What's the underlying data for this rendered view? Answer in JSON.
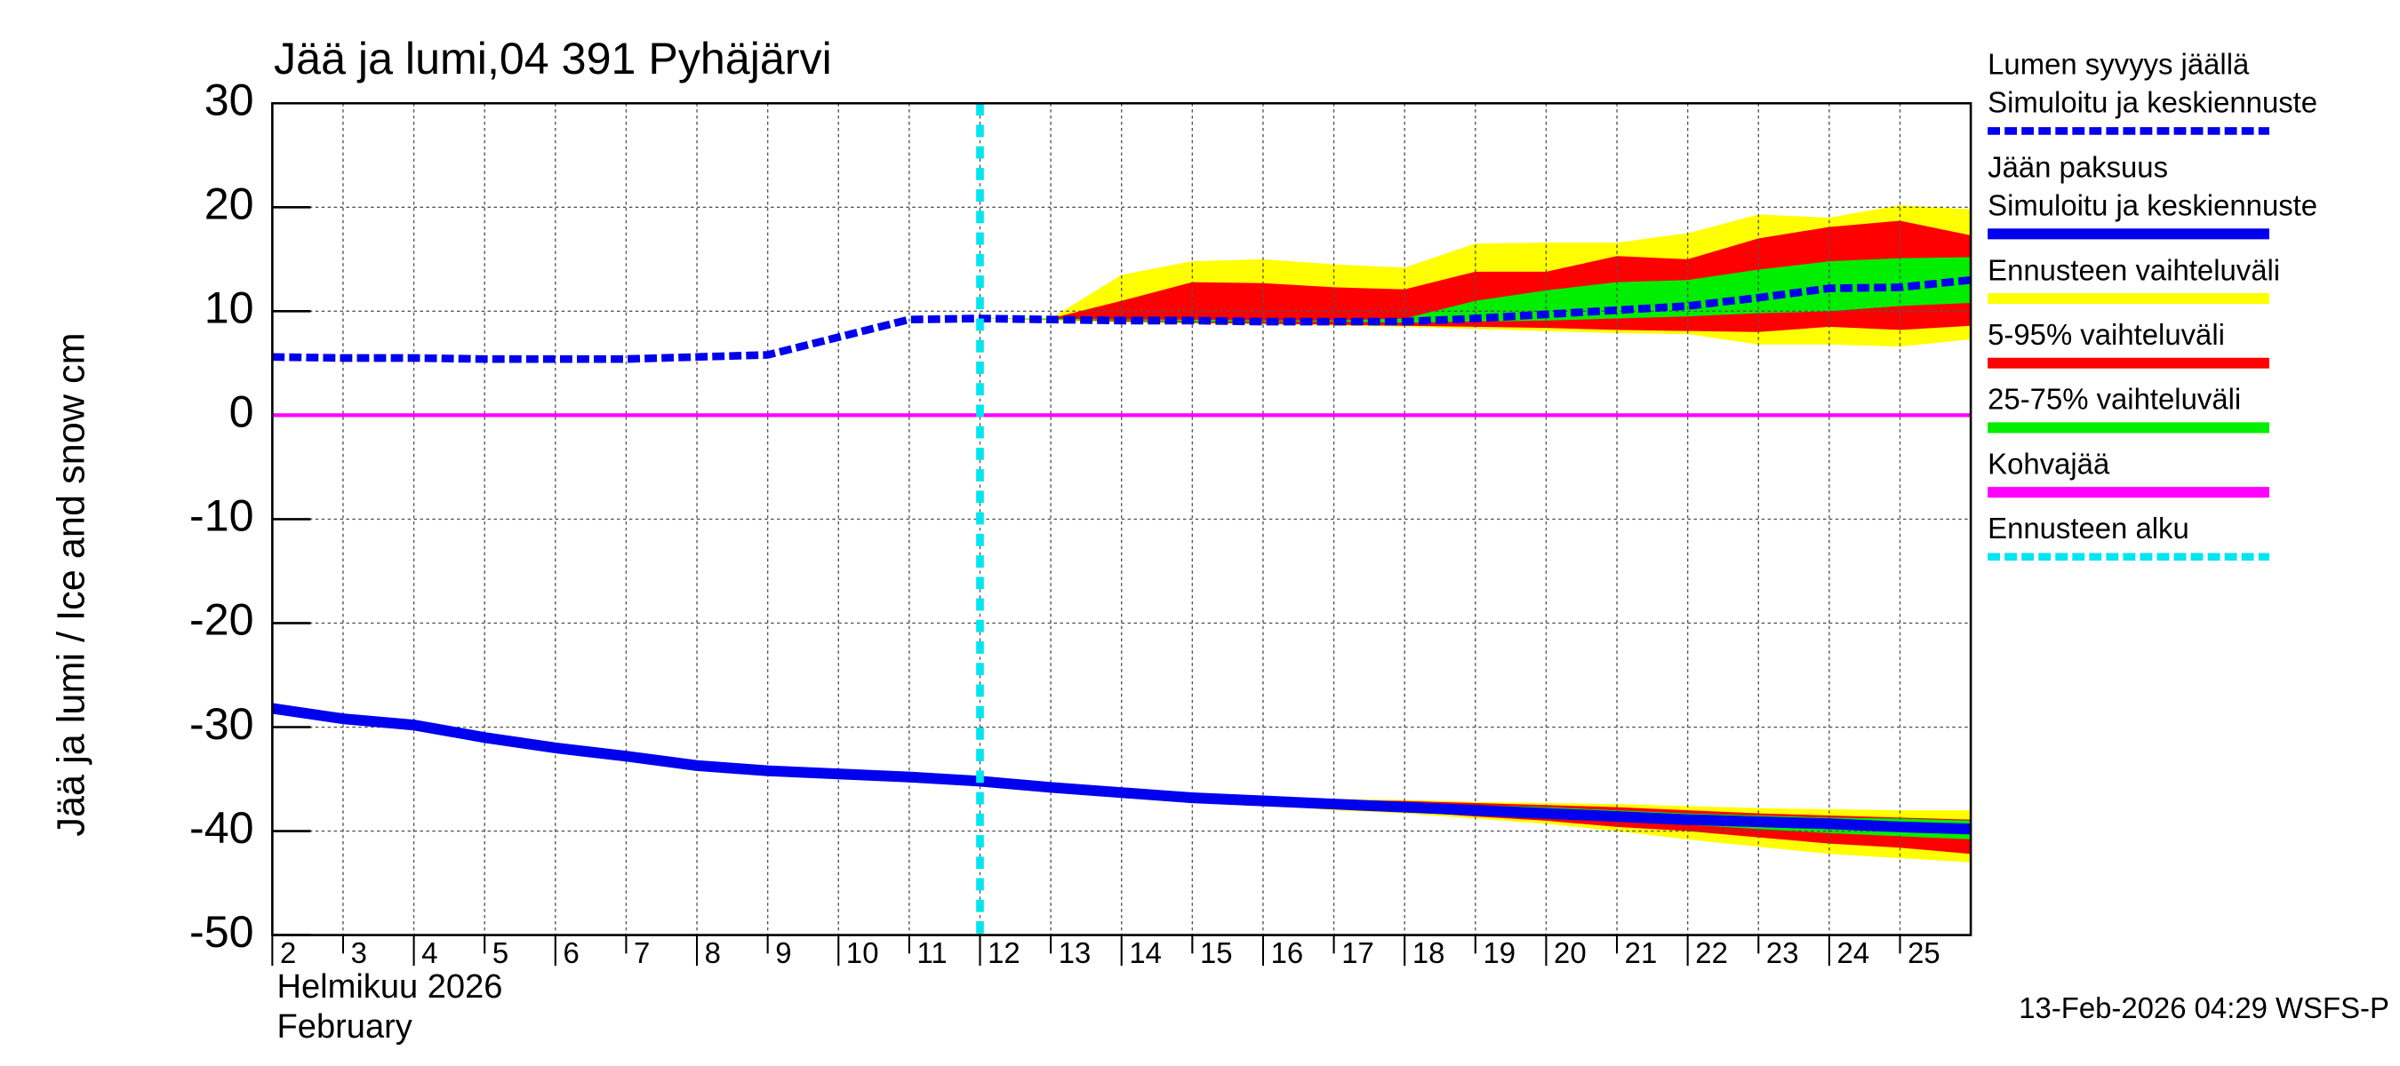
{
  "chart_data": {
    "type": "line",
    "title": "Jää ja lumi,04 391 Pyhäjärvi",
    "y_label": "Jää ja lumi / Ice and snow    cm",
    "x_label_fi": "Helmikuu  2026",
    "x_label_en": "February",
    "footer": "13-Feb-2026 04:29 WSFS-P",
    "xlim": [
      2,
      26
    ],
    "ylim": [
      -50,
      30
    ],
    "xticks": [
      2,
      3,
      4,
      5,
      6,
      7,
      8,
      9,
      10,
      11,
      12,
      13,
      14,
      15,
      16,
      17,
      18,
      19,
      20,
      21,
      22,
      23,
      24,
      25
    ],
    "yticks": [
      -50,
      -40,
      -30,
      -20,
      -10,
      0,
      10,
      20,
      30
    ],
    "grid": true,
    "forecast_start": 12,
    "bands": [
      {
        "color": "#ffff00",
        "x": [
          12,
          13,
          14,
          15,
          16,
          17,
          18,
          19,
          20,
          21,
          22,
          23,
          24,
          25,
          26
        ],
        "low": [
          9.3,
          9.1,
          8.9,
          8.8,
          8.7,
          8.6,
          8.5,
          8.3,
          8.1,
          7.9,
          7.8,
          6.8,
          6.8,
          6.6,
          7.3
        ],
        "high": [
          9.3,
          9.3,
          13.5,
          14.8,
          15.0,
          14.5,
          14.2,
          16.5,
          16.6,
          16.6,
          17.5,
          19.3,
          19.0,
          20.2,
          19.8
        ]
      },
      {
        "color": "#ff0000",
        "x": [
          12,
          13,
          14,
          15,
          16,
          17,
          18,
          19,
          20,
          21,
          22,
          23,
          24,
          25,
          26
        ],
        "low": [
          9.3,
          9.2,
          9.0,
          8.9,
          8.8,
          8.7,
          8.6,
          8.5,
          8.4,
          8.2,
          8.1,
          8.0,
          8.5,
          8.2,
          8.6
        ],
        "high": [
          9.3,
          9.3,
          11.0,
          12.8,
          12.7,
          12.3,
          12.1,
          13.8,
          13.8,
          15.3,
          15.0,
          17.0,
          18.1,
          18.7,
          17.3
        ]
      },
      {
        "color": "#00ee00",
        "x": [
          12,
          13,
          14,
          15,
          16,
          17,
          18,
          19,
          20,
          21,
          22,
          23,
          24,
          25,
          26
        ],
        "low": [
          9.3,
          9.2,
          9.1,
          9.0,
          9.0,
          9.0,
          8.9,
          9.0,
          9.1,
          9.3,
          9.5,
          9.8,
          10.0,
          10.5,
          10.8
        ],
        "high": [
          9.3,
          9.3,
          9.2,
          9.2,
          9.1,
          9.1,
          9.3,
          11.0,
          12.0,
          12.8,
          13.0,
          14.0,
          14.8,
          15.1,
          15.2
        ]
      },
      {
        "color": "#ffff00",
        "x": [
          12,
          13,
          14,
          15,
          16,
          17,
          18,
          19,
          20,
          21,
          22,
          23,
          24,
          25,
          26
        ],
        "low": [
          -35.2,
          -35.8,
          -36.3,
          -36.9,
          -37.5,
          -38.0,
          -38.3,
          -38.8,
          -39.3,
          -40.0,
          -40.8,
          -41.5,
          -42.2,
          -42.6,
          -43.0
        ],
        "high": [
          -35.2,
          -35.8,
          -36.2,
          -36.5,
          -36.7,
          -36.9,
          -37.0,
          -37.2,
          -37.3,
          -37.4,
          -37.6,
          -37.8,
          -37.9,
          -38.0,
          -38.0
        ]
      },
      {
        "color": "#ff0000",
        "x": [
          12,
          13,
          14,
          15,
          16,
          17,
          18,
          19,
          20,
          21,
          22,
          23,
          24,
          25,
          26
        ],
        "low": [
          -35.2,
          -35.8,
          -36.3,
          -36.9,
          -37.4,
          -37.8,
          -38.1,
          -38.6,
          -39.0,
          -39.6,
          -40.0,
          -40.6,
          -41.2,
          -41.6,
          -42.2
        ],
        "high": [
          -35.2,
          -35.8,
          -36.2,
          -36.6,
          -36.8,
          -37.0,
          -37.1,
          -37.3,
          -37.5,
          -37.7,
          -38.0,
          -38.3,
          -38.5,
          -38.7,
          -38.9
        ]
      },
      {
        "color": "#00ee00",
        "x": [
          12,
          13,
          14,
          15,
          16,
          17,
          18,
          19,
          20,
          21,
          22,
          23,
          24,
          25,
          26
        ],
        "low": [
          -35.2,
          -35.8,
          -36.3,
          -36.8,
          -37.2,
          -37.5,
          -37.8,
          -38.2,
          -38.6,
          -39.0,
          -39.4,
          -39.8,
          -40.2,
          -40.5,
          -40.8
        ],
        "high": [
          -35.2,
          -35.8,
          -36.3,
          -36.7,
          -36.9,
          -37.1,
          -37.3,
          -37.5,
          -37.7,
          -38.0,
          -38.3,
          -38.5,
          -38.7,
          -38.8,
          -39.0
        ]
      }
    ],
    "series": [
      {
        "color": "#ff00ff",
        "dashed": false,
        "x": [
          2,
          26
        ],
        "values": [
          0,
          0
        ]
      },
      {
        "color": "#0000ee",
        "dashed": false,
        "x": [
          2,
          3,
          4,
          5,
          6,
          7,
          8,
          9,
          10,
          11,
          12,
          13,
          14,
          15,
          16,
          17,
          18,
          19,
          20,
          21,
          22,
          23,
          24,
          25,
          26
        ],
        "values": [
          -28.2,
          -29.2,
          -29.8,
          -31.0,
          -32.0,
          -32.8,
          -33.7,
          -34.2,
          -34.5,
          -34.8,
          -35.2,
          -35.8,
          -36.3,
          -36.8,
          -37.1,
          -37.4,
          -37.7,
          -38.0,
          -38.3,
          -38.6,
          -38.9,
          -39.1,
          -39.3,
          -39.6,
          -39.8
        ]
      },
      {
        "color": "#0000ee",
        "dashed": true,
        "x": [
          2,
          3,
          4,
          5,
          6,
          7,
          8,
          9,
          10,
          11,
          12,
          13,
          14,
          15,
          16,
          17,
          18,
          19,
          20,
          21,
          22,
          23,
          24,
          25,
          26
        ],
        "values": [
          5.6,
          5.5,
          5.5,
          5.4,
          5.4,
          5.4,
          5.6,
          5.8,
          7.5,
          9.2,
          9.3,
          9.2,
          9.1,
          9.1,
          9.0,
          9.0,
          9.0,
          9.3,
          9.7,
          10.1,
          10.5,
          11.3,
          12.2,
          12.3,
          13.0
        ]
      }
    ],
    "legend": [
      {
        "lines": [
          "Lumen syvyys jäällä",
          "Simuloitu ja keskiennuste"
        ],
        "color": "#0000ee",
        "dashed": true
      },
      {
        "lines": [
          "Jään paksuus",
          "Simuloitu ja keskiennuste"
        ],
        "color": "#0000ee",
        "dashed": false
      },
      {
        "lines": [
          "Ennusteen vaihteluväli"
        ],
        "color": "#ffff00",
        "dashed": false
      },
      {
        "lines": [
          "5-95% vaihteluväli"
        ],
        "color": "#ff0000",
        "dashed": false
      },
      {
        "lines": [
          "25-75% vaihteluväli"
        ],
        "color": "#00ee00",
        "dashed": false
      },
      {
        "lines": [
          "Kohvajää"
        ],
        "color": "#ff00ff",
        "dashed": false
      },
      {
        "lines": [
          "Ennusteen alku"
        ],
        "color": "#00e5ee",
        "dashed": true
      }
    ]
  }
}
